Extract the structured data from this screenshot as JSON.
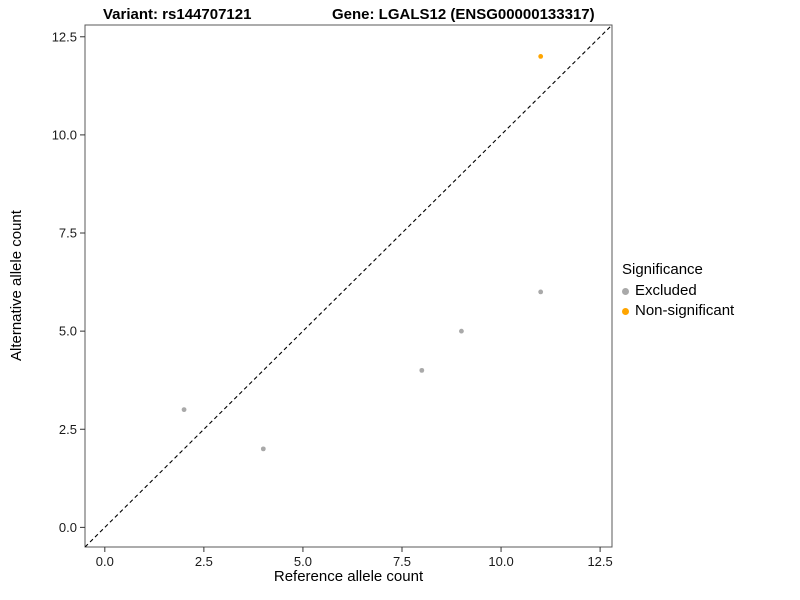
{
  "titles": {
    "left": "Variant: rs144707121",
    "right": "Gene: LGALS12 (ENSG00000133317)"
  },
  "axes": {
    "x_label": "Reference allele count",
    "y_label": "Alternative allele count"
  },
  "legend": {
    "title": "Significance",
    "items": [
      {
        "label": "Excluded",
        "color": "#A9A9A9"
      },
      {
        "label": "Non-significant",
        "color": "#FFA500"
      }
    ]
  },
  "chart_data": {
    "type": "scatter",
    "title": "Variant: rs144707121 / Gene: LGALS12 (ENSG00000133317)",
    "xlabel": "Reference allele count",
    "ylabel": "Alternative allele count",
    "xlim": [
      -0.5,
      12.8
    ],
    "ylim": [
      -0.5,
      12.8
    ],
    "x_ticks": [
      0.0,
      2.5,
      5.0,
      7.5,
      10.0,
      12.5
    ],
    "y_ticks": [
      0.0,
      2.5,
      5.0,
      7.5,
      10.0,
      12.5
    ],
    "grid": false,
    "legend_position": "right",
    "identity_line": {
      "style": "dashed",
      "from": [
        -1,
        -1
      ],
      "to": [
        14,
        14
      ]
    },
    "series": [
      {
        "name": "Excluded",
        "color": "#A9A9A9",
        "points": [
          [
            2,
            3
          ],
          [
            4,
            2
          ],
          [
            8,
            4
          ],
          [
            9,
            5
          ],
          [
            11,
            6
          ]
        ]
      },
      {
        "name": "Non-significant",
        "color": "#FFA500",
        "points": [
          [
            11,
            12
          ]
        ]
      }
    ],
    "panel_border_color": "#595959",
    "tick_color": "#333333",
    "tick_label_color": "#1a1a1a",
    "line_color": "#000000"
  }
}
